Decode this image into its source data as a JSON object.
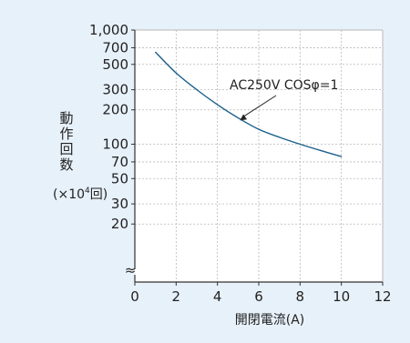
{
  "chart_data": {
    "type": "line",
    "ylabel_chars": [
      "動",
      "作",
      "回",
      "数"
    ],
    "ylabel_unit": {
      "prefix": "(×10",
      "exp": "4",
      "suffix": "回)"
    },
    "xlabel": "開閉電流(A)",
    "xlim": [
      0,
      12
    ],
    "x_ticks": [
      "0",
      "2",
      "4",
      "6",
      "8",
      "10",
      "12"
    ],
    "ylim": [
      10,
      1000
    ],
    "y_scale": "log",
    "y_ticks": [
      {
        "v": 1000,
        "label": "1,000"
      },
      {
        "v": 700,
        "label": "700"
      },
      {
        "v": 500,
        "label": "500"
      },
      {
        "v": 300,
        "label": "300"
      },
      {
        "v": 200,
        "label": "200"
      },
      {
        "v": 100,
        "label": "100"
      },
      {
        "v": 70,
        "label": "70"
      },
      {
        "v": 50,
        "label": "50"
      },
      {
        "v": 30,
        "label": "30"
      },
      {
        "v": 20,
        "label": "20"
      }
    ],
    "y_break_symbol": "≈",
    "grid": true,
    "series": [
      {
        "name": "AC250V COSφ=1",
        "x": [
          1,
          2,
          3,
          4,
          5,
          6,
          7,
          8,
          9,
          10
        ],
        "y": [
          640,
          420,
          300,
          222,
          170,
          135,
          115,
          100,
          88,
          78
        ]
      }
    ],
    "annotation": {
      "text": "AC250V COSφ=1",
      "points_to_x": 5
    }
  },
  "colors": {
    "background": "#e7f1fa",
    "plot_area": "#ffffff",
    "line": "#1a5f8c",
    "grid": "#b8b8b8",
    "text": "#222222"
  }
}
